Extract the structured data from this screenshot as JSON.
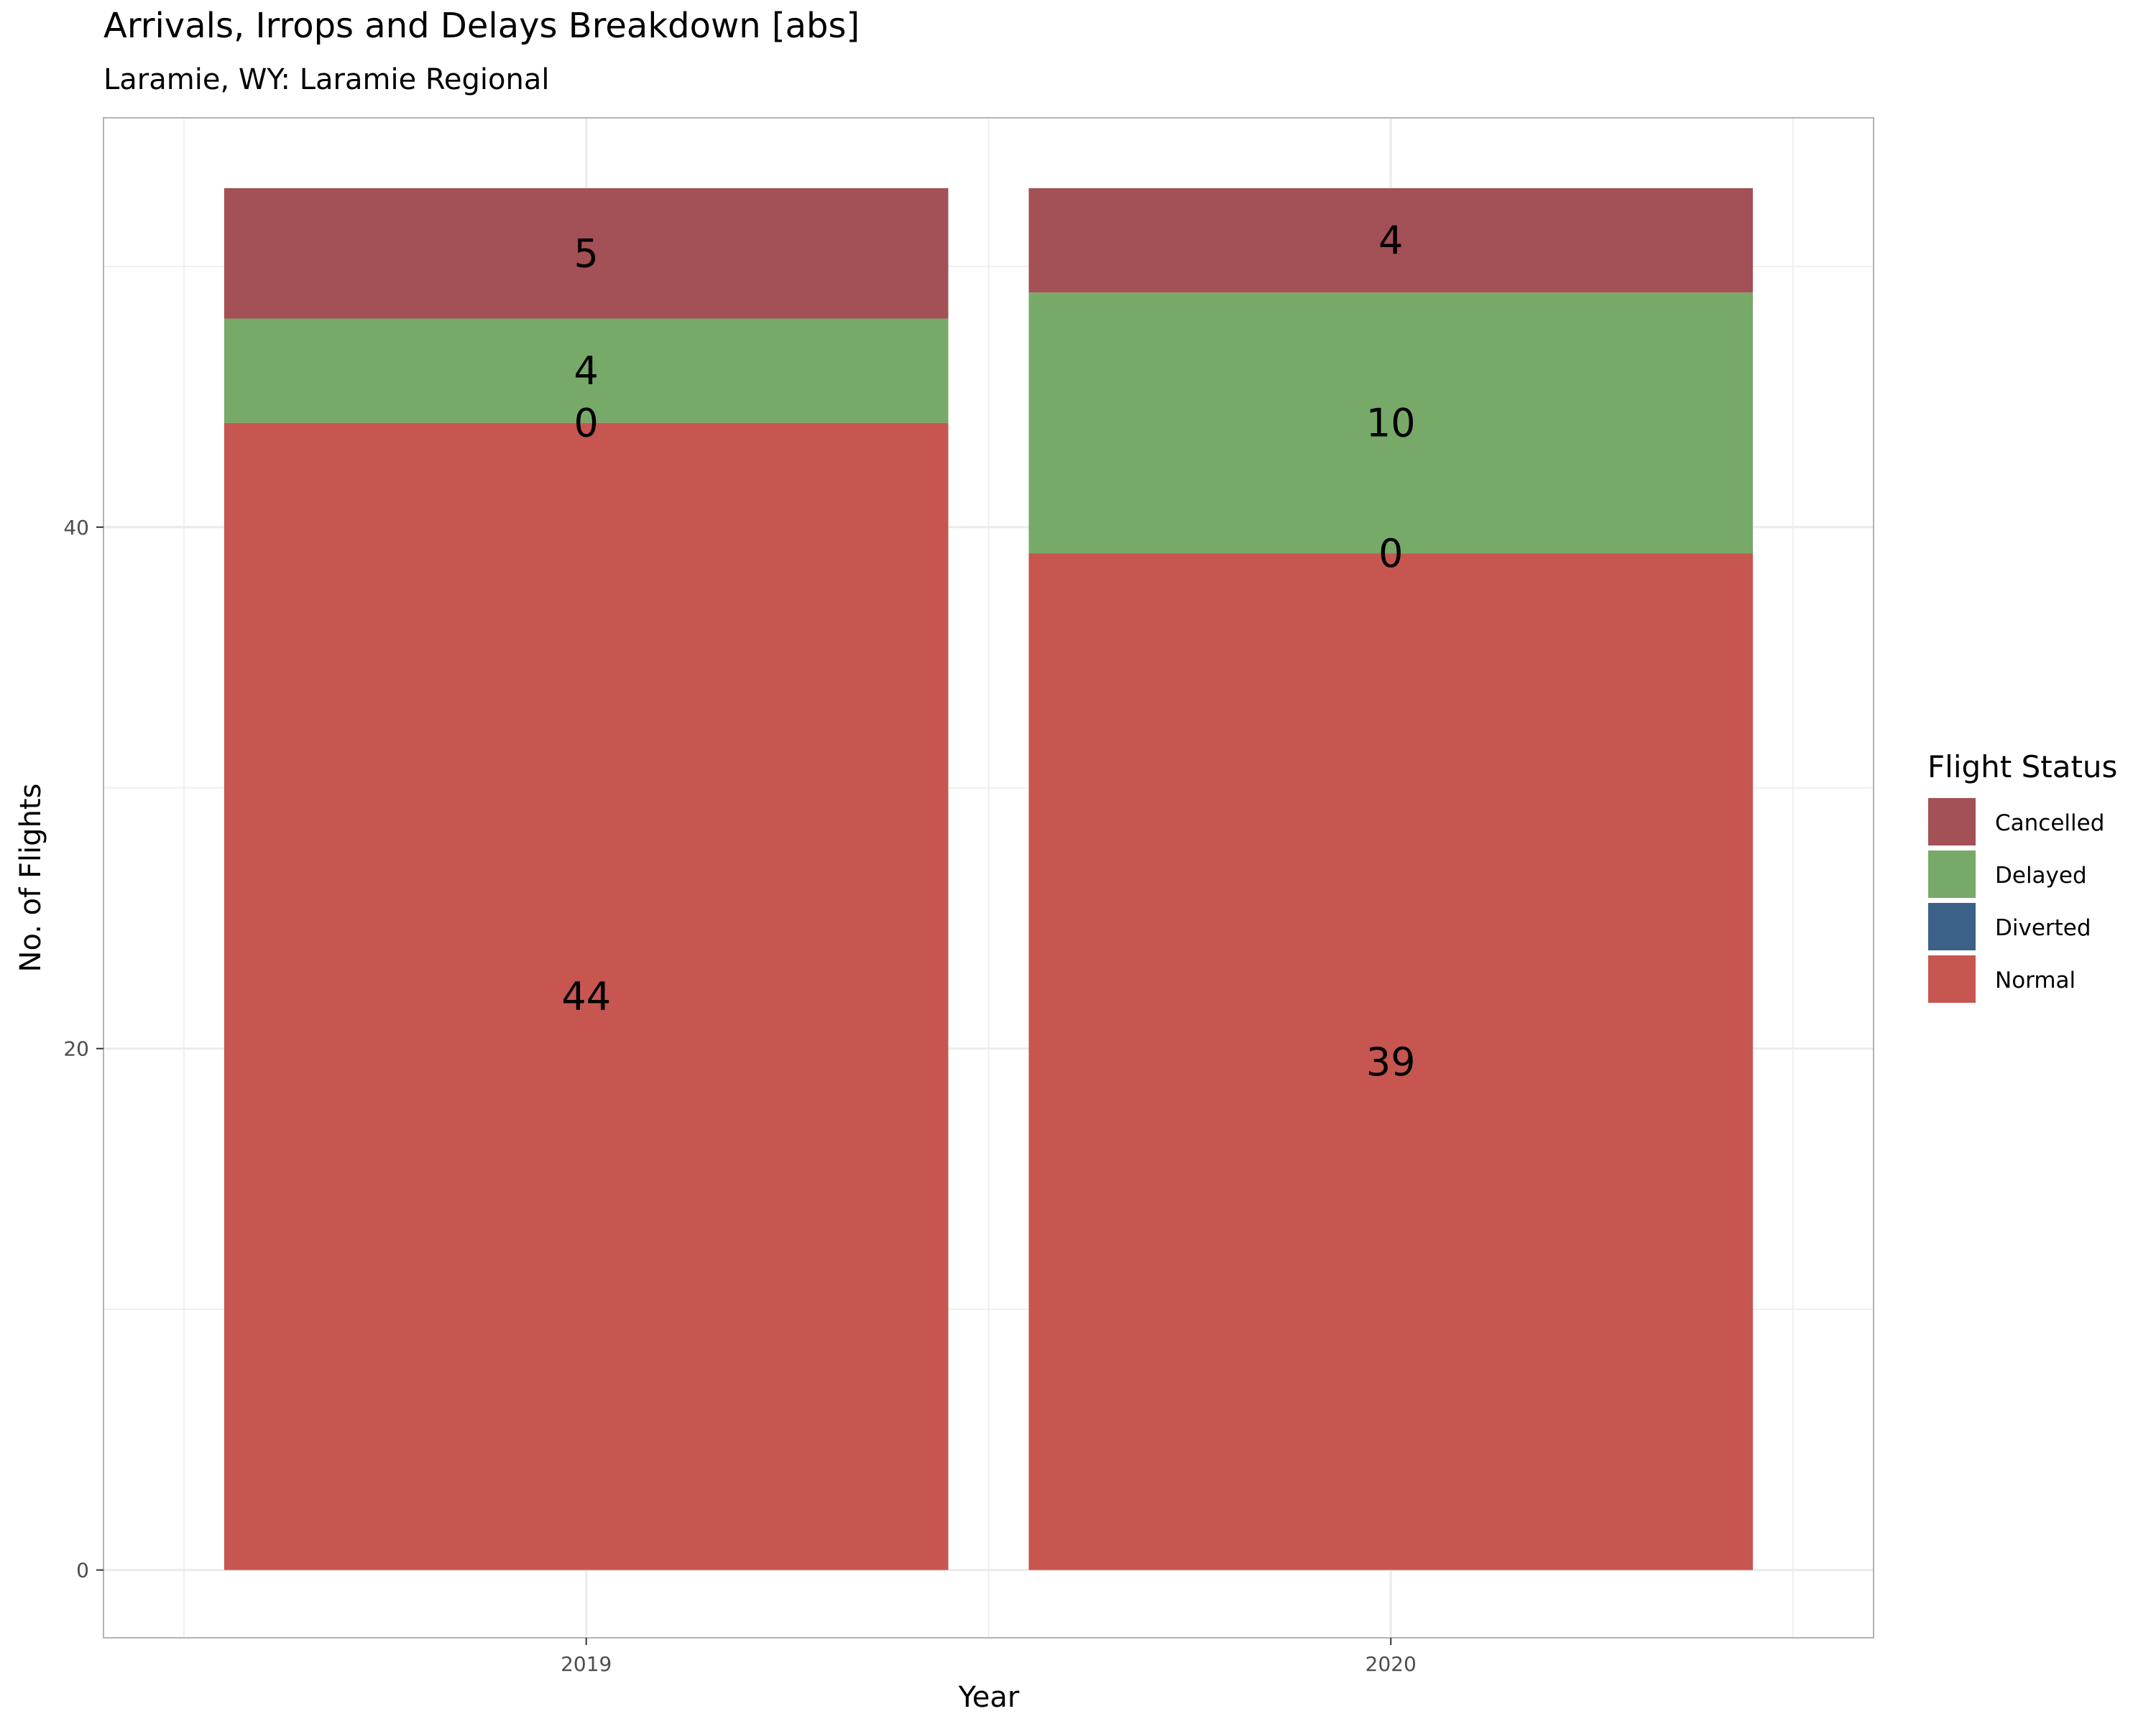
{
  "chart_data": {
    "type": "bar",
    "stacked": true,
    "title": "Arrivals, Irrops and Delays Breakdown [abs]",
    "subtitle": "Laramie, WY: Laramie Regional",
    "xlabel": "Year",
    "ylabel": "No. of Flights",
    "categories": [
      "2019",
      "2020"
    ],
    "ylim": [
      -2.6,
      55.7
    ],
    "yticks": [
      0,
      20,
      40
    ],
    "grid": true,
    "legend": {
      "title": "Flight Status",
      "position": "right"
    },
    "series": [
      {
        "name": "Normal",
        "color": "#C75650",
        "values": [
          44,
          39
        ]
      },
      {
        "name": "Diverted",
        "color": "#3B6188",
        "values": [
          0,
          0
        ]
      },
      {
        "name": "Delayed",
        "color": "#77A968",
        "values": [
          4,
          10
        ]
      },
      {
        "name": "Cancelled",
        "color": "#A35056",
        "values": [
          5,
          4
        ]
      }
    ],
    "legend_order": [
      "Cancelled",
      "Delayed",
      "Diverted",
      "Normal"
    ]
  }
}
